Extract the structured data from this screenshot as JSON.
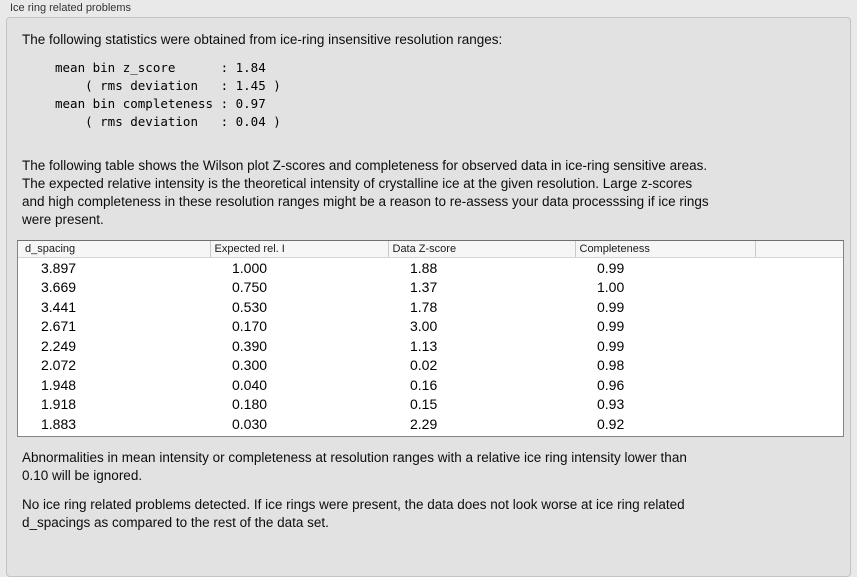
{
  "panel": {
    "title": "Ice ring related problems"
  },
  "intro_text": "The following statistics were obtained from ice-ring insensitive resolution ranges:",
  "stats_block": "mean bin z_score      : 1.84\n    ( rms deviation   : 1.45 )\nmean bin completeness : 0.97\n    ( rms deviation   : 0.04 )",
  "table_intro": "The following table shows the Wilson plot Z-scores and completeness for observed data in ice-ring sensitive areas.\nThe expected relative intensity is the theoretical intensity of crystalline ice at the given resolution. Large z-scores\nand high completeness in these resolution ranges might be a reason to re-assess your data processsing if ice rings\nwere present.",
  "table": {
    "columns": [
      "d_spacing",
      "Expected rel. I",
      "Data Z-score",
      "Completeness"
    ],
    "rows": [
      [
        "3.897",
        "1.000",
        "1.88",
        "0.99"
      ],
      [
        "3.669",
        "0.750",
        "1.37",
        "1.00"
      ],
      [
        "3.441",
        "0.530",
        "1.78",
        "0.99"
      ],
      [
        "2.671",
        "0.170",
        "3.00",
        "0.99"
      ],
      [
        "2.249",
        "0.390",
        "1.13",
        "0.99"
      ],
      [
        "2.072",
        "0.300",
        "0.02",
        "0.98"
      ],
      [
        "1.948",
        "0.040",
        "0.16",
        "0.96"
      ],
      [
        "1.918",
        "0.180",
        "0.15",
        "0.93"
      ],
      [
        "1.883",
        "0.030",
        "2.29",
        "0.92"
      ]
    ]
  },
  "ignore_note": "Abnormalities in mean intensity or completeness at resolution ranges with a relative ice ring intensity lower than\n0.10 will be ignored.",
  "result_text": "No ice ring related problems detected. If ice rings were present, the data does not look worse at ice ring related\nd_spacings as compared to the rest of the data set."
}
